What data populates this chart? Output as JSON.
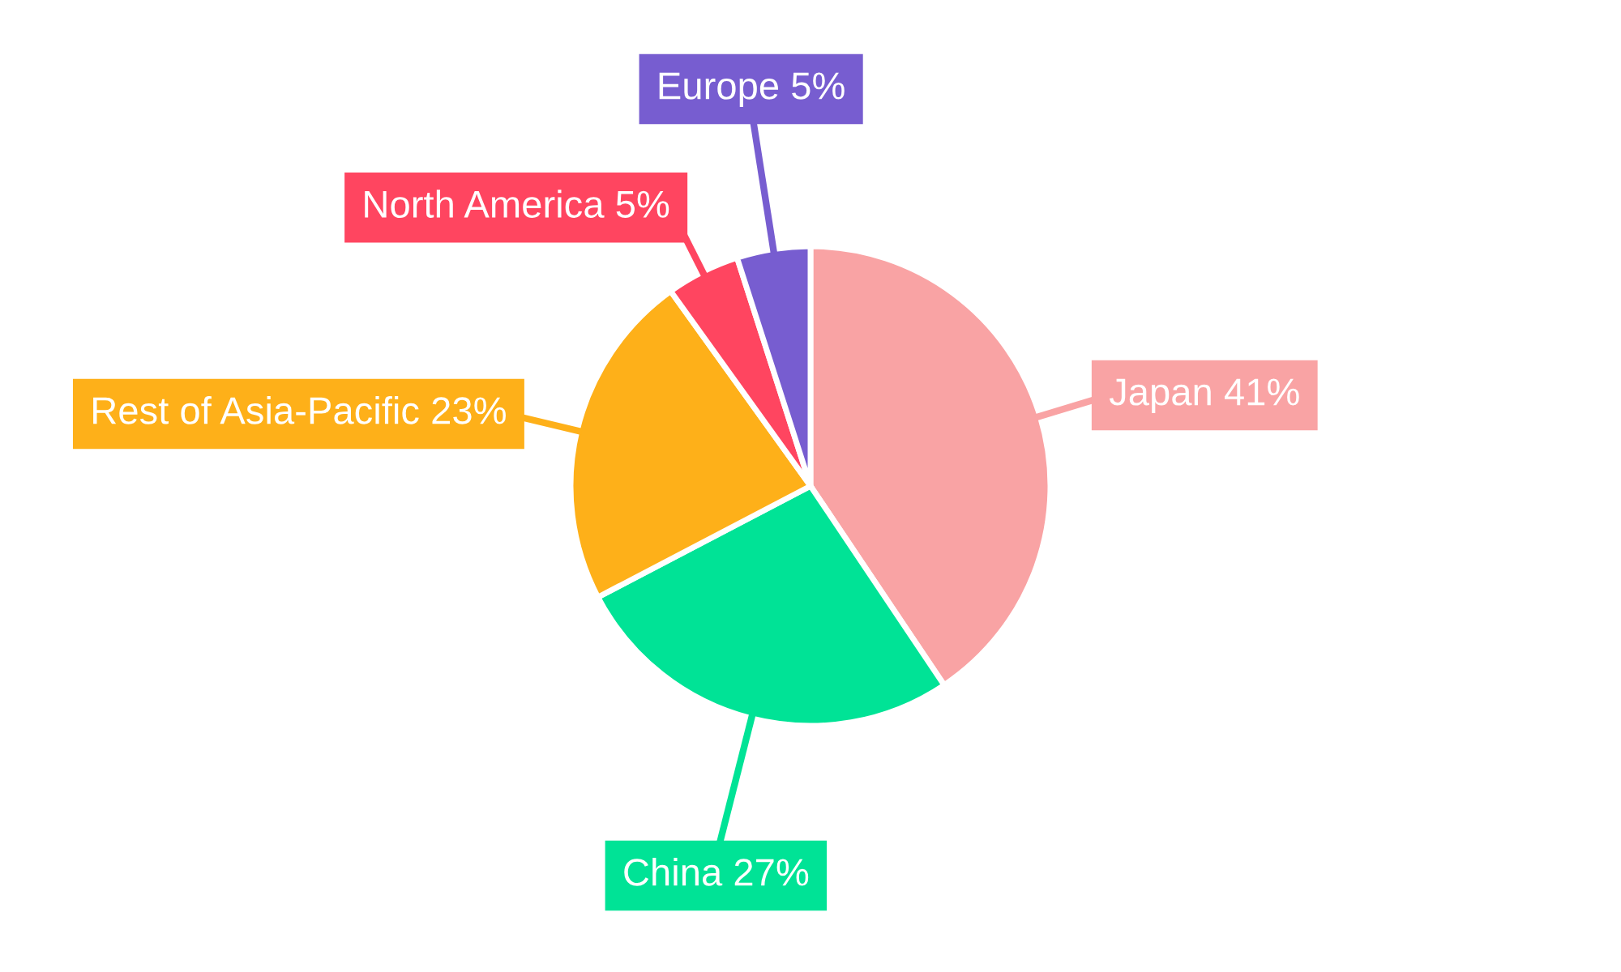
{
  "chart_data": {
    "type": "pie",
    "categories": [
      "Japan",
      "China",
      "Rest of Asia-Pacific",
      "North America",
      "Europe"
    ],
    "values": [
      41,
      27,
      23,
      5,
      5
    ],
    "value_labels": [
      "41%",
      "27%",
      "23%",
      "5%",
      "5%"
    ],
    "colors": [
      "#f9a3a4",
      "#00e396",
      "#feb019",
      "#ff4560",
      "#775dd0"
    ],
    "legend": false
  }
}
